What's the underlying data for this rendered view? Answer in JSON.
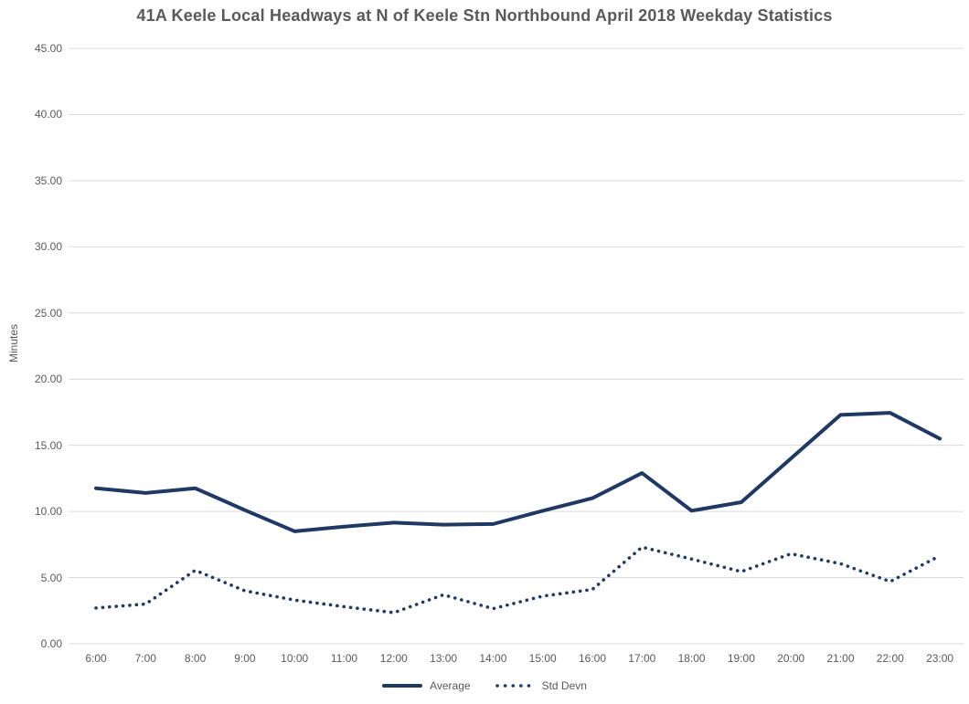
{
  "chart": {
    "title": "41A Keele Local Headways at N of Keele Stn Northbound April 2018 Weekday Statistics",
    "ylabel": "Minutes"
  },
  "colors": {
    "line": "#1f3864",
    "text": "#595959",
    "gridline": "#d9d9d9",
    "background": "#ffffff"
  },
  "chart_data": {
    "type": "line",
    "title": "41A Keele Local Headways at N of Keele Stn Northbound April 2018 Weekday Statistics",
    "xlabel": "",
    "ylabel": "Minutes",
    "ylim": [
      0,
      45
    ],
    "ytick_step": 5,
    "ytick_labels": [
      "0.00",
      "5.00",
      "10.00",
      "15.00",
      "20.00",
      "25.00",
      "30.00",
      "35.00",
      "40.00",
      "45.00"
    ],
    "grid": true,
    "legend_position": "bottom",
    "categories": [
      "6:00",
      "7:00",
      "8:00",
      "9:00",
      "10:00",
      "11:00",
      "12:00",
      "13:00",
      "14:00",
      "15:00",
      "16:00",
      "17:00",
      "18:00",
      "19:00",
      "20:00",
      "21:00",
      "22:00",
      "23:00"
    ],
    "series": [
      {
        "name": "Average",
        "style": "solid",
        "color": "#1f3864",
        "values": [
          11.75,
          11.4,
          11.75,
          10.1,
          8.5,
          8.85,
          9.15,
          9.0,
          9.05,
          10.05,
          11.0,
          12.9,
          10.05,
          10.7,
          14.0,
          17.3,
          17.45,
          15.5
        ]
      },
      {
        "name": "Std Devn",
        "style": "dotted",
        "color": "#1f3864",
        "values": [
          2.7,
          3.0,
          5.55,
          4.0,
          3.3,
          2.8,
          2.35,
          3.7,
          2.65,
          3.6,
          4.1,
          7.3,
          6.4,
          5.45,
          6.8,
          6.05,
          4.7,
          6.65
        ]
      }
    ]
  }
}
